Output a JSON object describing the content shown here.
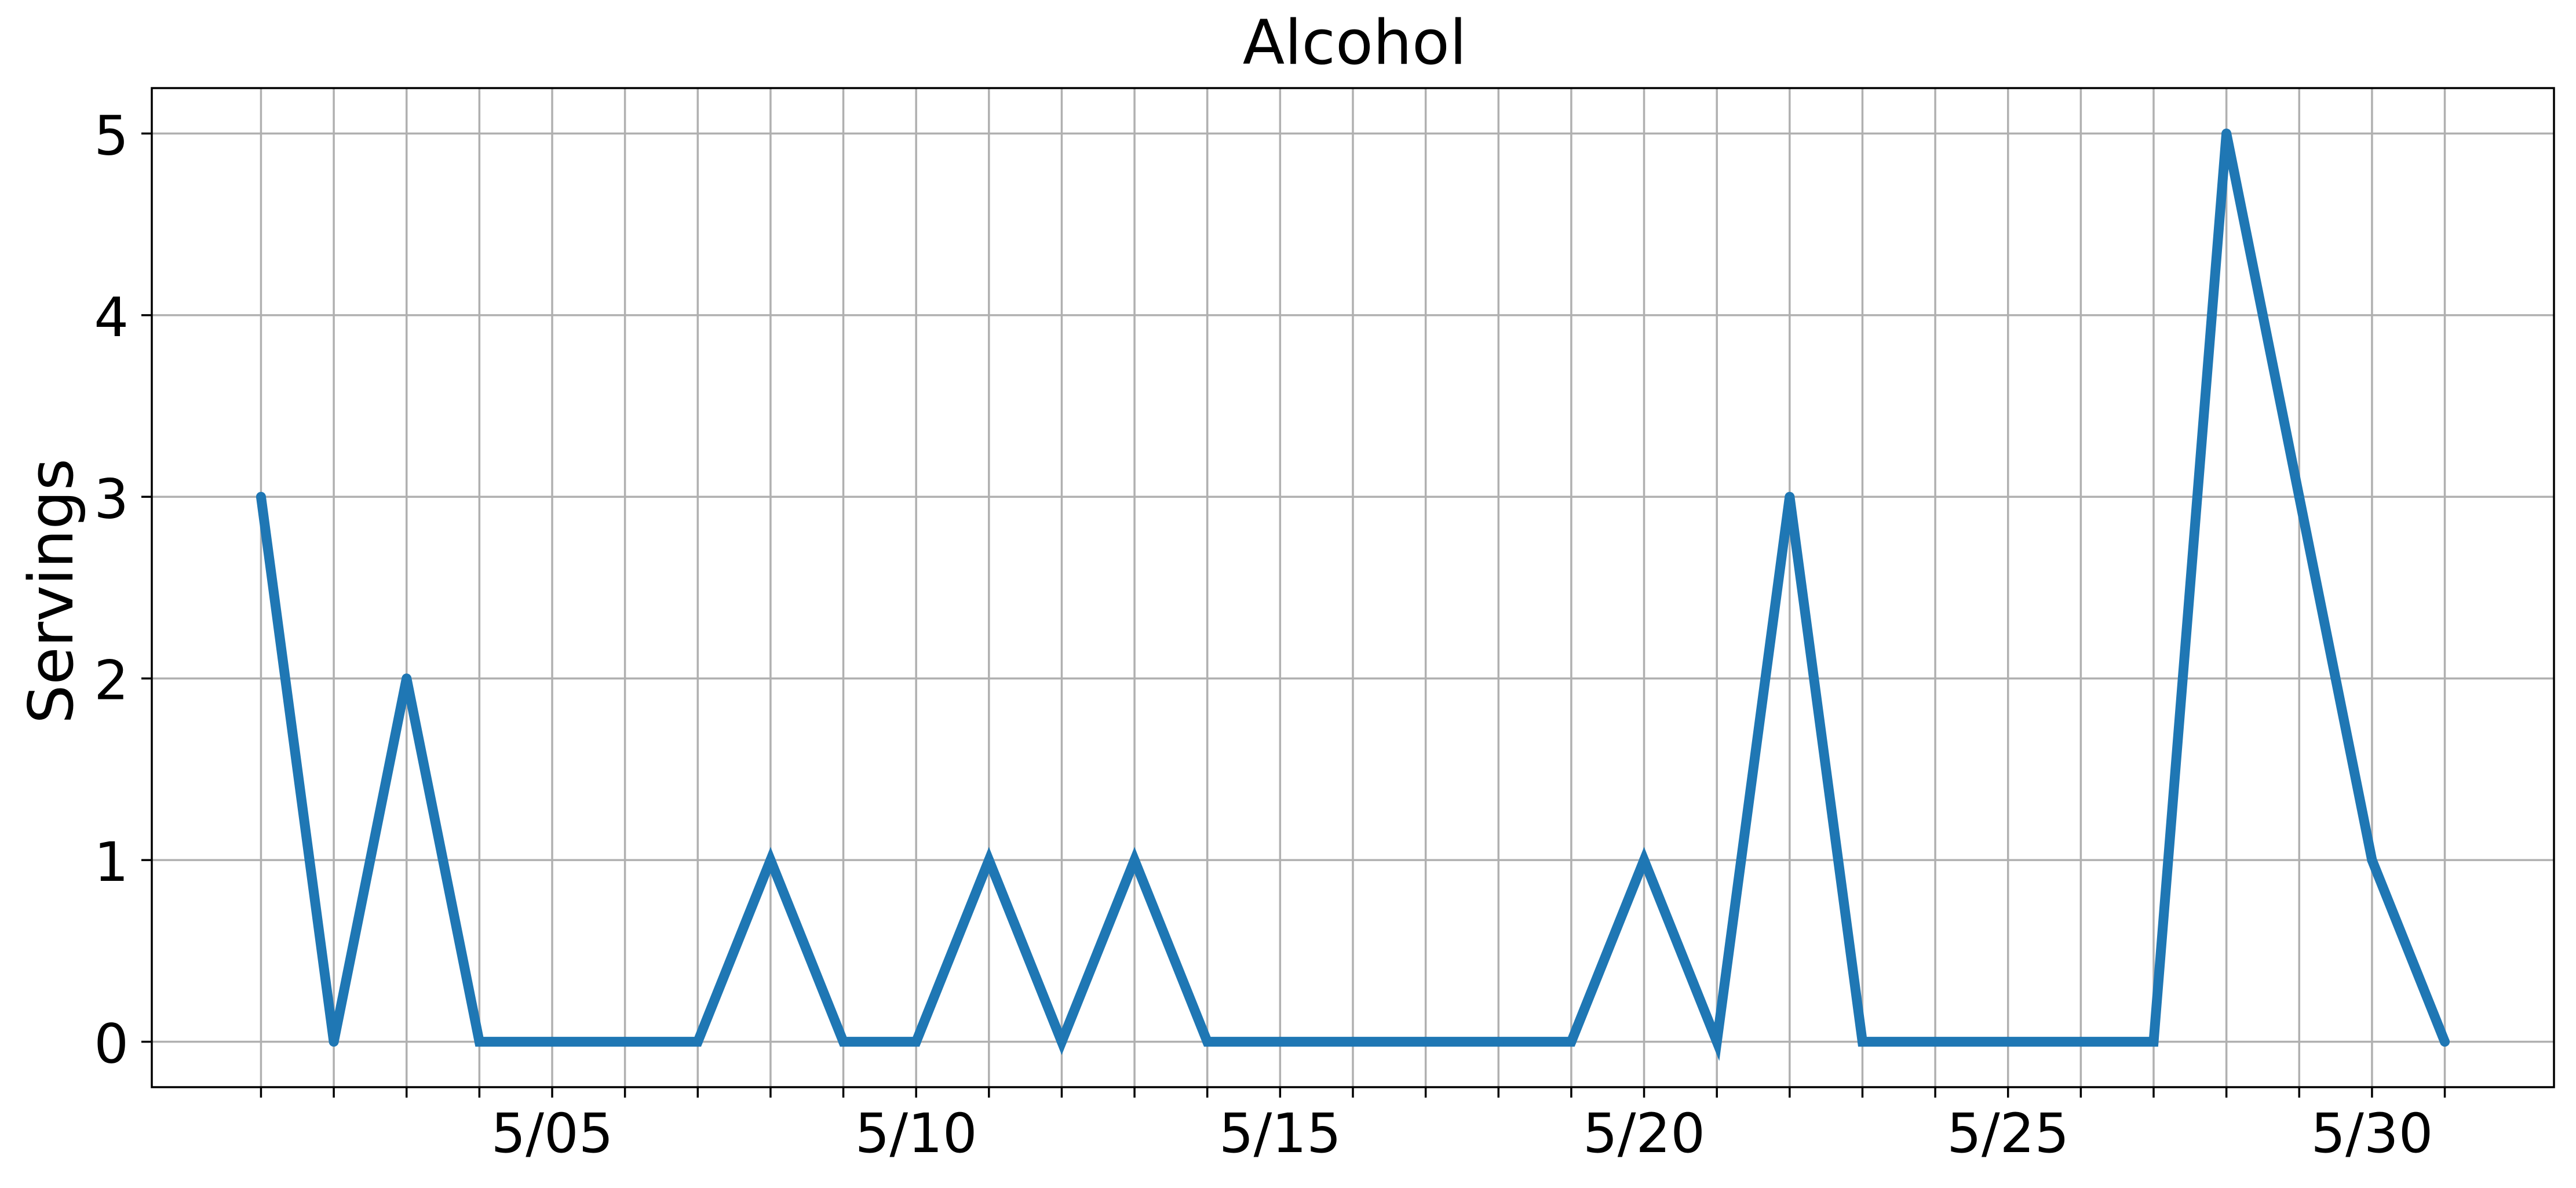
{
  "chart_data": {
    "type": "line",
    "title": "Alcohol",
    "xlabel": "",
    "ylabel": "Servings",
    "x": [
      "5/01",
      "5/02",
      "5/03",
      "5/04",
      "5/05",
      "5/06",
      "5/07",
      "5/08",
      "5/09",
      "5/10",
      "5/11",
      "5/12",
      "5/13",
      "5/14",
      "5/15",
      "5/16",
      "5/17",
      "5/18",
      "5/19",
      "5/20",
      "5/21",
      "5/22",
      "5/23",
      "5/24",
      "5/25",
      "5/26",
      "5/27",
      "5/28",
      "5/29",
      "5/30",
      "5/31"
    ],
    "series": [
      {
        "values": [
          3,
          0,
          2,
          0,
          0,
          0,
          0,
          1,
          0,
          0,
          1,
          0,
          1,
          0,
          0,
          0,
          0,
          0,
          0,
          1,
          0,
          3,
          0,
          0,
          0,
          0,
          0,
          5,
          3,
          1,
          0
        ],
        "color": "#1f77b4"
      }
    ],
    "xtick_labels": [
      "5/05",
      "5/10",
      "5/15",
      "5/20",
      "5/25",
      "5/30"
    ],
    "yticks": [
      0,
      1,
      2,
      3,
      4,
      5
    ],
    "ylim": [
      -0.25,
      5.25
    ],
    "xlim": [
      "4/29 12:00",
      "6/01 12:00"
    ],
    "grid": true,
    "legend": "none",
    "colors": {
      "grid": "#b0b0b0",
      "axes": "#000000",
      "background": "#ffffff"
    }
  }
}
